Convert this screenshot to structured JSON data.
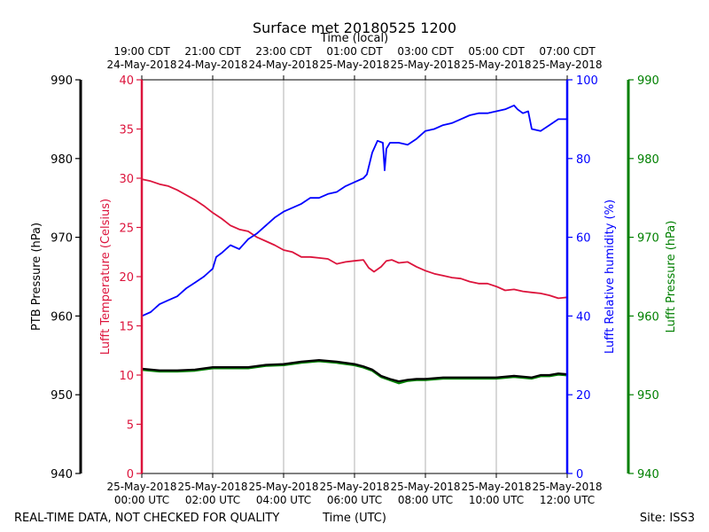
{
  "chart_data": {
    "type": "line",
    "title": "Surface met 20180525 1200",
    "top_xlabel": "Time (local)",
    "xlabel": "Time (UTC)",
    "footer_left": "REAL-TIME DATA, NOT CHECKED FOR QUALITY",
    "footer_right": "Site: ISS3",
    "x_range_hours": [
      0,
      12
    ],
    "x_ticks": [
      {
        "hour": 0,
        "utc_date": "25-May-2018",
        "utc_time": "00:00 UTC",
        "local_time": "19:00 CDT",
        "local_date": "24-May-2018"
      },
      {
        "hour": 2,
        "utc_date": "25-May-2018",
        "utc_time": "02:00 UTC",
        "local_time": "21:00 CDT",
        "local_date": "24-May-2018"
      },
      {
        "hour": 4,
        "utc_date": "25-May-2018",
        "utc_time": "04:00 UTC",
        "local_time": "23:00 CDT",
        "local_date": "24-May-2018"
      },
      {
        "hour": 6,
        "utc_date": "25-May-2018",
        "utc_time": "06:00 UTC",
        "local_time": "01:00 CDT",
        "local_date": "25-May-2018"
      },
      {
        "hour": 8,
        "utc_date": "25-May-2018",
        "utc_time": "08:00 UTC",
        "local_time": "03:00 CDT",
        "local_date": "25-May-2018"
      },
      {
        "hour": 10,
        "utc_date": "25-May-2018",
        "utc_time": "10:00 UTC",
        "local_time": "05:00 CDT",
        "local_date": "25-May-2018"
      },
      {
        "hour": 12,
        "utc_date": "25-May-2018",
        "utc_time": "12:00 UTC",
        "local_time": "07:00 CDT",
        "local_date": "25-May-2018"
      }
    ],
    "axes": {
      "ptb_pressure": {
        "label": "PTB Pressure (hPa)",
        "range": [
          940,
          990
        ],
        "ticks": [
          940,
          950,
          960,
          970,
          980,
          990
        ],
        "color": "#000000"
      },
      "temperature": {
        "label": "Lufft Temperature (Celsius)",
        "range": [
          0,
          40
        ],
        "ticks": [
          0,
          5,
          10,
          15,
          20,
          25,
          30,
          35,
          40
        ],
        "color": "#dc143c"
      },
      "humidity": {
        "label": "Lufft Relative humidity (%)",
        "range": [
          0,
          100
        ],
        "ticks": [
          0,
          20,
          40,
          60,
          80,
          100
        ],
        "color": "#0000ff"
      },
      "lufft_pressure": {
        "label": "Lufft Pressure (hPa)",
        "range": [
          940,
          990
        ],
        "ticks": [
          940,
          950,
          960,
          970,
          980,
          990
        ],
        "color": "#008000"
      }
    },
    "series": [
      {
        "name": "Lufft Temperature",
        "axis": "temperature",
        "color": "#dc143c",
        "x": [
          0,
          0.25,
          0.5,
          0.75,
          1,
          1.25,
          1.5,
          1.75,
          2,
          2.25,
          2.5,
          2.75,
          3,
          3.25,
          3.5,
          3.75,
          4,
          4.25,
          4.5,
          4.75,
          5,
          5.25,
          5.5,
          5.75,
          6,
          6.25,
          6.4,
          6.55,
          6.75,
          6.9,
          7.05,
          7.25,
          7.5,
          7.75,
          8,
          8.25,
          8.5,
          8.75,
          9,
          9.25,
          9.5,
          9.75,
          10,
          10.25,
          10.5,
          10.75,
          11,
          11.25,
          11.5,
          11.75,
          12
        ],
        "y": [
          29.9,
          29.7,
          29.4,
          29.2,
          28.8,
          28.3,
          27.8,
          27.2,
          26.5,
          25.9,
          25.2,
          24.8,
          24.6,
          24.0,
          23.6,
          23.2,
          22.7,
          22.5,
          22.0,
          22.0,
          21.9,
          21.8,
          21.3,
          21.5,
          21.6,
          21.7,
          20.9,
          20.5,
          21.0,
          21.6,
          21.7,
          21.4,
          21.5,
          21.0,
          20.6,
          20.3,
          20.1,
          19.9,
          19.8,
          19.5,
          19.3,
          19.3,
          19.0,
          18.6,
          18.7,
          18.5,
          18.4,
          18.3,
          18.1,
          17.8,
          17.9
        ]
      },
      {
        "name": "Lufft Relative humidity",
        "axis": "humidity",
        "color": "#0000ff",
        "x": [
          0,
          0.25,
          0.5,
          0.75,
          1,
          1.25,
          1.5,
          1.75,
          2,
          2.1,
          2.25,
          2.5,
          2.75,
          3,
          3.25,
          3.5,
          3.75,
          4,
          4.25,
          4.5,
          4.75,
          5,
          5.25,
          5.5,
          5.75,
          6,
          6.25,
          6.35,
          6.5,
          6.65,
          6.8,
          6.85,
          6.9,
          7,
          7.25,
          7.5,
          7.75,
          8,
          8.25,
          8.5,
          8.75,
          9,
          9.25,
          9.5,
          9.75,
          10,
          10.25,
          10.5,
          10.6,
          10.75,
          10.9,
          11,
          11.25,
          11.5,
          11.75,
          12
        ],
        "y": [
          40,
          41,
          43,
          44,
          45,
          47,
          48.5,
          50,
          52,
          55,
          56,
          58,
          57,
          59.5,
          61,
          63,
          65,
          66.5,
          67.5,
          68.5,
          70,
          70,
          71,
          71.5,
          73,
          74,
          75,
          76,
          81.5,
          84.5,
          84,
          77,
          82.5,
          84,
          84,
          83.5,
          85,
          87,
          87.5,
          88.5,
          89,
          90,
          91,
          91.5,
          91.5,
          92,
          92.5,
          93.5,
          92.5,
          91.5,
          92,
          87.5,
          87,
          88.5,
          90,
          90
        ]
      },
      {
        "name": "PTB Pressure",
        "axis": "ptb_pressure",
        "color": "#000000",
        "x": [
          0,
          0.5,
          1,
          1.5,
          2,
          2.5,
          3,
          3.5,
          4,
          4.5,
          5,
          5.5,
          6,
          6.25,
          6.5,
          6.75,
          7,
          7.25,
          7.5,
          7.75,
          8,
          8.5,
          9,
          9.5,
          10,
          10.5,
          11,
          11.25,
          11.5,
          11.75,
          12
        ],
        "y": [
          953.3,
          953.1,
          953.1,
          953.2,
          953.5,
          953.5,
          953.5,
          953.8,
          953.9,
          954.2,
          954.4,
          954.2,
          953.9,
          953.6,
          953.2,
          952.4,
          952.0,
          951.7,
          951.9,
          952.0,
          952.0,
          952.2,
          952.2,
          952.2,
          952.2,
          952.4,
          952.2,
          952.5,
          952.5,
          952.7,
          952.6
        ]
      },
      {
        "name": "Lufft Pressure",
        "axis": "lufft_pressure",
        "color": "#008000",
        "x": [
          0,
          0.5,
          1,
          1.5,
          2,
          2.5,
          3,
          3.5,
          4,
          4.5,
          5,
          5.5,
          6,
          6.25,
          6.5,
          6.75,
          7,
          7.25,
          7.5,
          7.75,
          8,
          8.5,
          9,
          9.5,
          10,
          10.5,
          11,
          11.25,
          11.5,
          11.75,
          12
        ],
        "y": [
          953.2,
          953.0,
          953.0,
          953.1,
          953.4,
          953.4,
          953.4,
          953.7,
          953.8,
          954.1,
          954.3,
          954.1,
          953.8,
          953.5,
          953.1,
          952.3,
          951.9,
          951.5,
          951.8,
          951.9,
          951.9,
          952.1,
          952.1,
          952.1,
          952.1,
          952.3,
          952.1,
          952.4,
          952.4,
          952.6,
          952.5
        ]
      }
    ]
  }
}
